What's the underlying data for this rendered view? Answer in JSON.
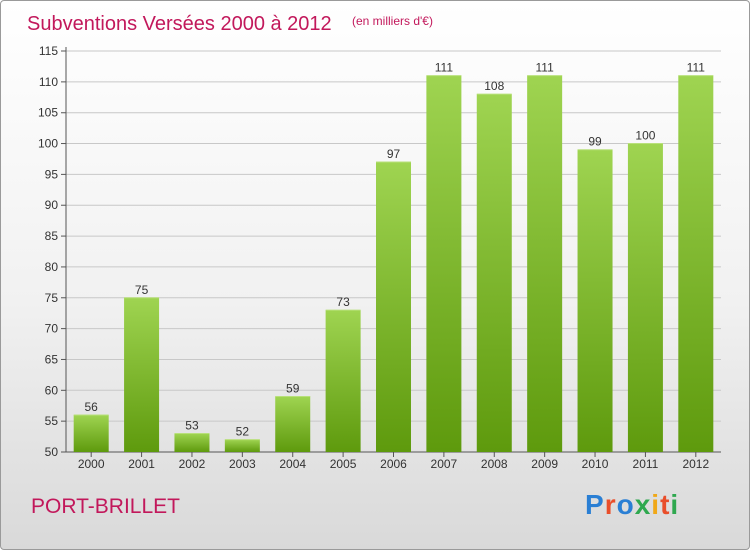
{
  "chart_data": {
    "type": "bar",
    "title": "Subventions Versées 2000 à 2012",
    "subtitle": "(en milliers d'€)",
    "categories": [
      "2000",
      "2001",
      "2002",
      "2003",
      "2004",
      "2005",
      "2006",
      "2007",
      "2008",
      "2009",
      "2010",
      "2011",
      "2012"
    ],
    "values": [
      56,
      75,
      53,
      52,
      59,
      73,
      97,
      111,
      108,
      111,
      99,
      100,
      111
    ],
    "ylim": [
      50,
      115
    ],
    "yticks": [
      50,
      55,
      60,
      65,
      70,
      75,
      80,
      85,
      90,
      95,
      100,
      105,
      110,
      115
    ],
    "grid": true,
    "colors": {
      "bar_top": "#9fd451",
      "bar_bottom": "#5e9a0d",
      "title": "#c2185b"
    }
  },
  "footer": {
    "place": "PORT-BRILLET",
    "logo_text": "Proxiti",
    "logo_colors": [
      "#2a7fd4",
      "#e94e2a",
      "#2a7fd4",
      "#2fa84f",
      "#f0a818",
      "#e94e2a",
      "#2fa84f"
    ]
  }
}
